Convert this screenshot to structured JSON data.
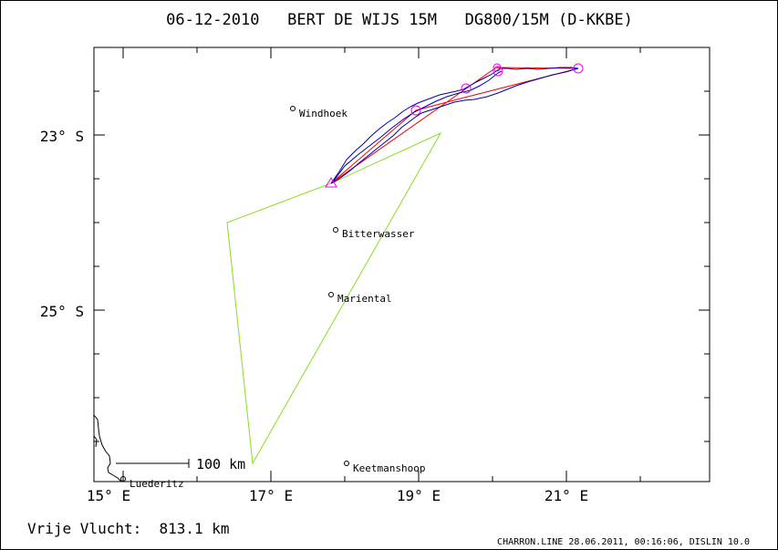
{
  "title": "06-12-2010   BERT DE WIJS 15M   DG800/15M (D-KKBE)",
  "axes": {
    "x_ticks": [
      "15° E",
      "17° E",
      "19° E",
      "21° E"
    ],
    "y_ticks": [
      "23° S",
      "25° S"
    ]
  },
  "places": [
    {
      "name": "Windhoek"
    },
    {
      "name": "Bitterwasser"
    },
    {
      "name": "Mariental"
    },
    {
      "name": "Keetmanshoop"
    },
    {
      "name": "Luederitz"
    }
  ],
  "scale_bar_label": "100 km",
  "distance_label": "Vrije Vlucht:  813.1 km",
  "footer": "CHARRON.LINE 28.06.2011, 00:16:06, DISLIN 10.0",
  "colors": {
    "task": "#88dd22",
    "track": "#0000aa",
    "optimized": "#ee0000",
    "turnpoint": "#ee00ee",
    "coast": "#000000"
  }
}
